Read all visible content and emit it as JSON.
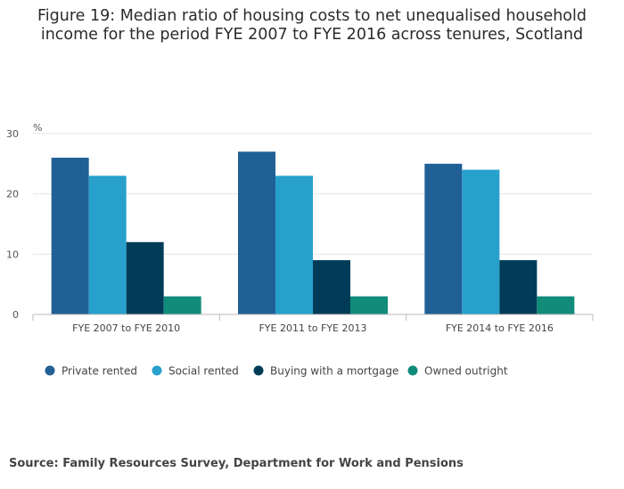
{
  "chart_data": {
    "type": "bar",
    "title": "Figure 19: Median ratio of housing costs to net unequalised household income for the period FYE 2007 to FYE 2016 across tenures, Scotland",
    "xlabel": "",
    "ylabel": "%",
    "ylim": [
      0,
      30
    ],
    "yticks": [
      0,
      10,
      20,
      30
    ],
    "grid": true,
    "legend_position": "bottom",
    "categories": [
      "FYE 2007 to FYE 2010",
      "FYE 2011 to FYE 2013",
      "FYE 2014 to FYE 2016"
    ],
    "series": [
      {
        "name": "Private rented",
        "color": "#206095",
        "values": [
          26,
          27,
          25
        ]
      },
      {
        "name": "Social rented",
        "color": "#27a0cc",
        "values": [
          23,
          23,
          24
        ]
      },
      {
        "name": "Buying with a mortgage",
        "color": "#003c57",
        "values": [
          12,
          9,
          9
        ]
      },
      {
        "name": "Owned outright",
        "color": "#118c7b",
        "values": [
          3,
          3,
          3
        ]
      }
    ]
  },
  "source": "Source: Family Resources Survey, Department for Work and Pensions"
}
